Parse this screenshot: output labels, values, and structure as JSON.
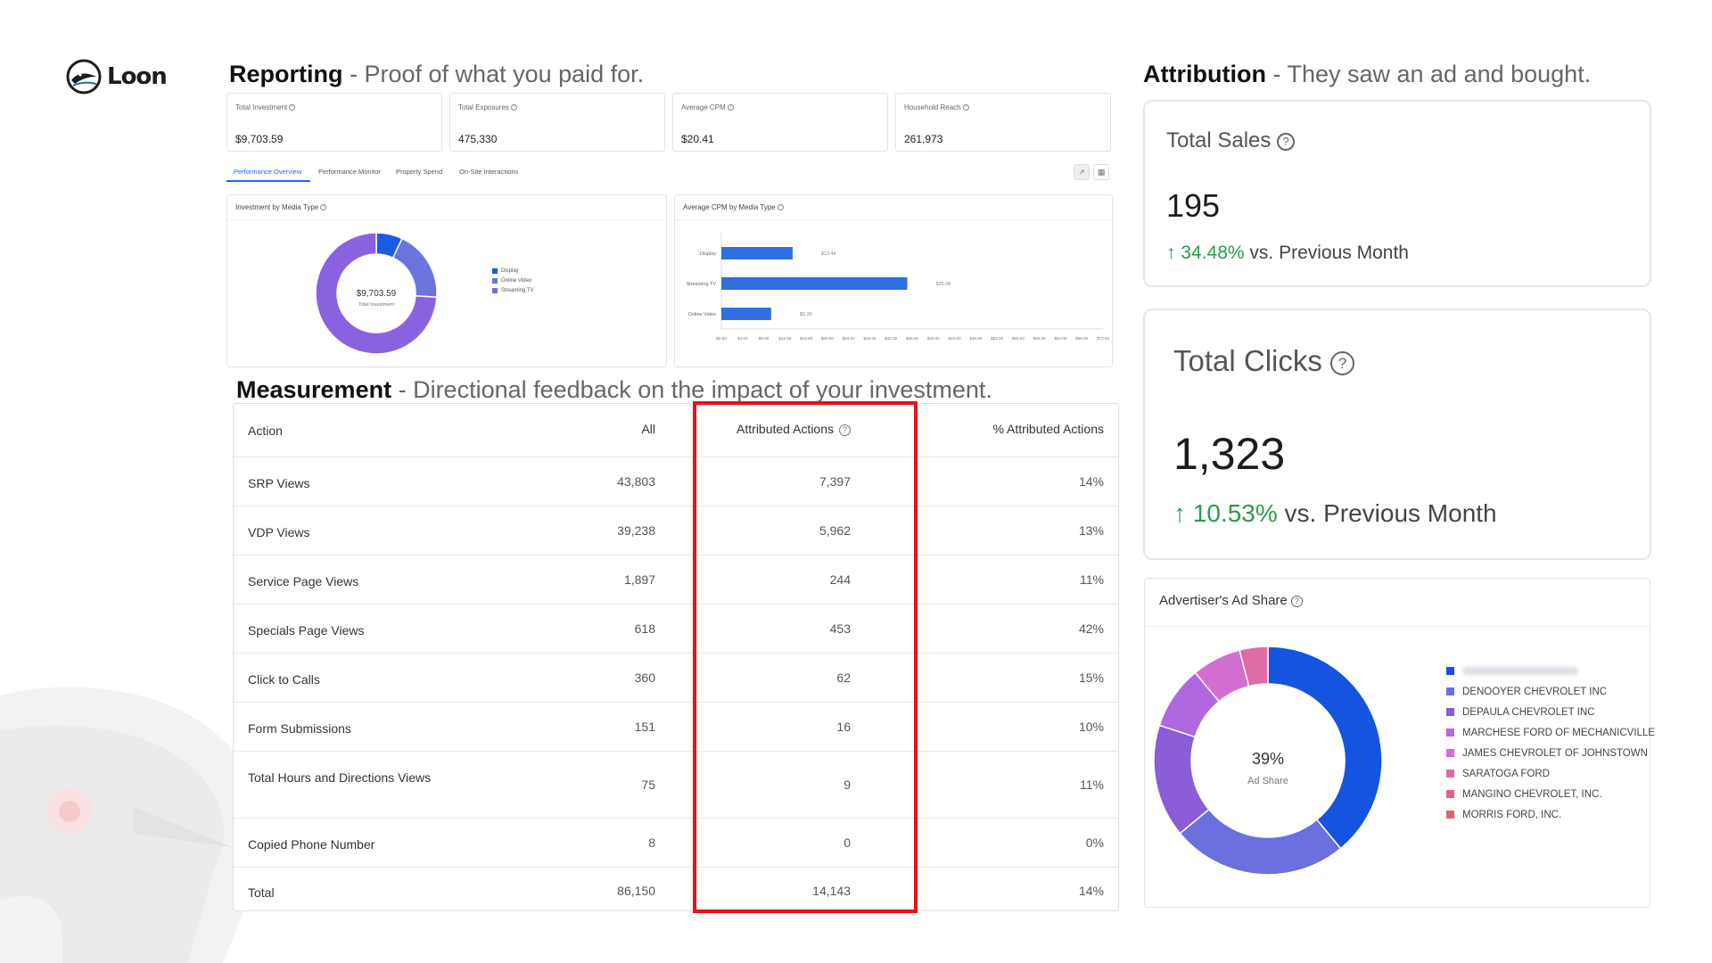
{
  "brand": {
    "name": "Loon"
  },
  "reporting": {
    "heading": "Reporting",
    "subheading": " - Proof of what you paid for.",
    "kpis": [
      {
        "label": "Total Investment",
        "value": "$9,703.59"
      },
      {
        "label": "Total Exposures",
        "value": "475,330"
      },
      {
        "label": "Average CPM",
        "value": "$20.41"
      },
      {
        "label": "Household Reach",
        "value": "261,973"
      }
    ],
    "tabs": [
      "Performance Overview",
      "Performance Monitor",
      "Property Spend",
      "On-Site Interactions"
    ],
    "donut_panel": {
      "title": "Investment by Media Type",
      "center_value": "$9,703.59",
      "center_label": "Total Investment"
    },
    "bar_panel": {
      "title": "Average CPM by Media Type"
    }
  },
  "chart_data": [
    {
      "type": "pie",
      "title": "Investment by Media Type",
      "categories": [
        "Display",
        "Online Video",
        "Streaming TV"
      ],
      "values": [
        7,
        19,
        74
      ],
      "colors": [
        "#1a5ce6",
        "#6b74dd",
        "#8a62e0"
      ],
      "legend": "right"
    },
    {
      "type": "bar",
      "title": "Average CPM by Media Type",
      "orientation": "horizontal",
      "categories": [
        "Display",
        "Streaming TV",
        "Online Video"
      ],
      "values": [
        13.44,
        35.08,
        9.39
      ],
      "data_labels": [
        "$13.44",
        "$35.08",
        "$9.39"
      ],
      "xlim": [
        0,
        72
      ],
      "x_ticks": [
        "$0.00",
        "$4.00",
        "$8.00",
        "$12.00",
        "$16.00",
        "$20.00",
        "$24.00",
        "$28.00",
        "$32.00",
        "$36.00",
        "$40.00",
        "$44.00",
        "$48.00",
        "$52.00",
        "$56.00",
        "$60.00",
        "$64.00",
        "$68.00",
        "$72.00"
      ],
      "color": "#2f6fe0"
    },
    {
      "type": "pie",
      "title": "Advertiser's Ad Share",
      "center_value": "39%",
      "center_label": "Ad Share",
      "categories": [
        "",
        "DENOOYER CHEVROLET INC",
        "DEPAULA CHEVROLET INC",
        "MARCHESE FORD OF MECHANICVILLE",
        "JAMES CHEVROLET OF JOHNSTOWN",
        "SARATOGA FORD",
        "MANGINO CHEVROLET, INC.",
        "MORRIS FORD, INC."
      ],
      "values": [
        39,
        25,
        16,
        9,
        7,
        4,
        0,
        0
      ],
      "colors": [
        "#1554e0",
        "#6b6fe0",
        "#8b5cd8",
        "#b068e0",
        "#d36fd0",
        "#de6ca6",
        "#e06287",
        "#df5f6e"
      ],
      "legend": "right"
    }
  ],
  "measurement": {
    "heading": "Measurement",
    "subheading": " - Directional feedback on the impact of your investment.",
    "columns": [
      "Action",
      "All",
      "Attributed Actions",
      "% Attributed Actions"
    ],
    "rows": [
      {
        "action": "SRP Views",
        "all": "43,803",
        "attributed": "7,397",
        "pct": "14%"
      },
      {
        "action": "VDP Views",
        "all": "39,238",
        "attributed": "5,962",
        "pct": "13%"
      },
      {
        "action": "Service Page Views",
        "all": "1,897",
        "attributed": "244",
        "pct": "11%"
      },
      {
        "action": "Specials Page Views",
        "all": "618",
        "attributed": "453",
        "pct": "42%"
      },
      {
        "action": "Click to Calls",
        "all": "360",
        "attributed": "62",
        "pct": "15%"
      },
      {
        "action": "Form Submissions",
        "all": "151",
        "attributed": "16",
        "pct": "10%"
      },
      {
        "action": "Total Hours and Directions Views",
        "all": "75",
        "attributed": "9",
        "pct": "11%"
      },
      {
        "action": "Copied Phone Number",
        "all": "8",
        "attributed": "0",
        "pct": "0%"
      },
      {
        "action": "Total",
        "all": "86,150",
        "attributed": "14,143",
        "pct": "14%"
      }
    ]
  },
  "attribution": {
    "heading": "Attribution",
    "subheading": " - They saw an ad and bought.",
    "total_sales": {
      "title": "Total Sales",
      "value": "195",
      "delta_pct": "34.48%",
      "delta_text": " vs. Previous Month"
    },
    "total_clicks": {
      "title": "Total Clicks",
      "value": "1,323",
      "delta_pct": "10.53%",
      "delta_text": " vs. Previous Month"
    },
    "ad_share": {
      "title": "Advertiser's Ad Share"
    }
  },
  "colors": {
    "accent": "#2563eb",
    "highlight": "#e8101a",
    "positive": "#2e9a4b"
  }
}
